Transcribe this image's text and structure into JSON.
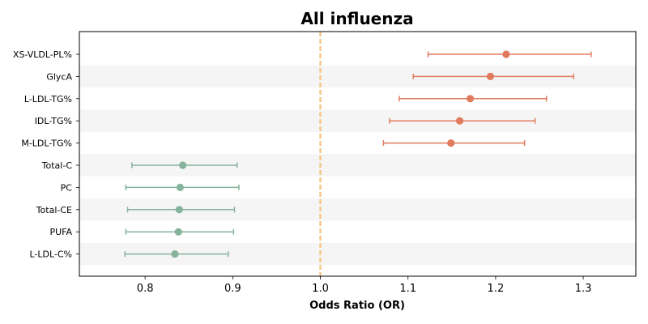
{
  "chart_data": {
    "type": "forest",
    "title": "All influenza",
    "xlabel": "Odds Ratio (OR)",
    "ylabel": "",
    "xlim": [
      0.725,
      1.36
    ],
    "xticks": [
      "0.8",
      "0.9",
      "1.0",
      "1.1",
      "1.2",
      "1.3"
    ],
    "reference_line": 1.0,
    "grid": false,
    "colors": {
      "increased": "#e07b5e",
      "decreased": "#86b39c",
      "reference": "#f5c88a",
      "band": "#f5f5f5"
    },
    "rows": [
      {
        "label": "XS-VLDL-PL%",
        "or": 1.212,
        "lower": 1.123,
        "upper": 1.309,
        "group": "increased"
      },
      {
        "label": "GlycA",
        "or": 1.194,
        "lower": 1.106,
        "upper": 1.289,
        "group": "increased"
      },
      {
        "label": "L-LDL-TG%",
        "or": 1.171,
        "lower": 1.09,
        "upper": 1.258,
        "group": "increased"
      },
      {
        "label": "IDL-TG%",
        "or": 1.159,
        "lower": 1.079,
        "upper": 1.245,
        "group": "increased"
      },
      {
        "label": "M-LDL-TG%",
        "or": 1.149,
        "lower": 1.072,
        "upper": 1.233,
        "group": "increased"
      },
      {
        "label": "Total-C",
        "or": 0.843,
        "lower": 0.785,
        "upper": 0.905,
        "group": "decreased"
      },
      {
        "label": "PC",
        "or": 0.84,
        "lower": 0.778,
        "upper": 0.907,
        "group": "decreased"
      },
      {
        "label": "Total-CE",
        "or": 0.839,
        "lower": 0.78,
        "upper": 0.902,
        "group": "decreased"
      },
      {
        "label": "PUFA",
        "or": 0.838,
        "lower": 0.778,
        "upper": 0.901,
        "group": "decreased"
      },
      {
        "label": "L-LDL-C%",
        "or": 0.834,
        "lower": 0.777,
        "upper": 0.895,
        "group": "decreased"
      }
    ]
  }
}
